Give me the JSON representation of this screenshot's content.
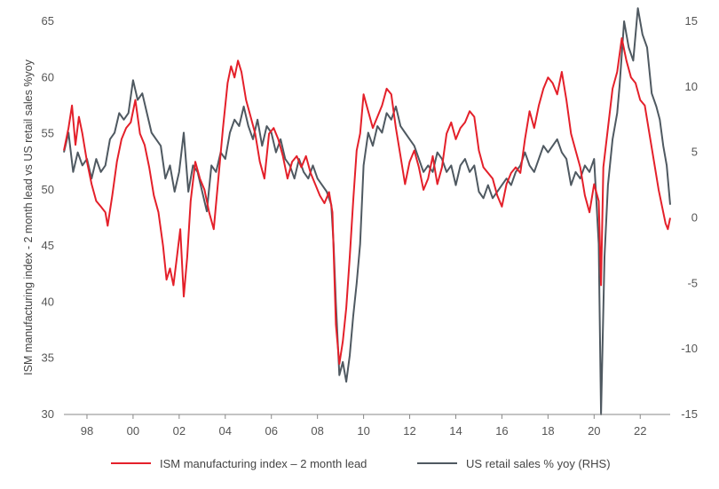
{
  "chart_data": {
    "type": "line",
    "title": "",
    "ylabel": "ISM manufacturing index - 2 month lead vs US retail sales %yoy",
    "xlabel": "",
    "x_range": [
      1997.0,
      2023.3
    ],
    "ylim_left": [
      30,
      65
    ],
    "ylim_right": [
      -15,
      15
    ],
    "y_ticks_left": [
      30,
      35,
      40,
      45,
      50,
      55,
      60,
      65
    ],
    "y_ticks_right": [
      -15,
      -10,
      -5,
      0,
      5,
      10,
      15
    ],
    "x_ticks": [
      {
        "x": 1998,
        "label": "98"
      },
      {
        "x": 2000,
        "label": "00"
      },
      {
        "x": 2002,
        "label": "02"
      },
      {
        "x": 2004,
        "label": "04"
      },
      {
        "x": 2006,
        "label": "06"
      },
      {
        "x": 2008,
        "label": "08"
      },
      {
        "x": 2010,
        "label": "10"
      },
      {
        "x": 2012,
        "label": "12"
      },
      {
        "x": 2014,
        "label": "14"
      },
      {
        "x": 2016,
        "label": "16"
      },
      {
        "x": 2018,
        "label": "18"
      },
      {
        "x": 2020,
        "label": "20"
      },
      {
        "x": 2022,
        "label": "22"
      }
    ],
    "grid": false,
    "legend_position": "bottom",
    "series": [
      {
        "name": "ISM manufacturing index – 2 month lead",
        "axis": "left",
        "color": "#e4202a",
        "points": [
          [
            1997.0,
            53.5
          ],
          [
            1997.2,
            55.5
          ],
          [
            1997.35,
            57.5
          ],
          [
            1997.5,
            54.0
          ],
          [
            1997.65,
            56.5
          ],
          [
            1997.8,
            55.0
          ],
          [
            1998.0,
            52.5
          ],
          [
            1998.2,
            50.5
          ],
          [
            1998.4,
            49.0
          ],
          [
            1998.6,
            48.5
          ],
          [
            1998.8,
            48.0
          ],
          [
            1998.9,
            46.8
          ],
          [
            1999.1,
            49.5
          ],
          [
            1999.3,
            52.5
          ],
          [
            1999.5,
            54.5
          ],
          [
            1999.7,
            55.5
          ],
          [
            1999.9,
            56.0
          ],
          [
            2000.1,
            58.0
          ],
          [
            2000.3,
            55.0
          ],
          [
            2000.5,
            54.0
          ],
          [
            2000.7,
            52.0
          ],
          [
            2000.9,
            49.5
          ],
          [
            2001.1,
            48.0
          ],
          [
            2001.3,
            45.0
          ],
          [
            2001.45,
            42.0
          ],
          [
            2001.6,
            43.0
          ],
          [
            2001.75,
            41.5
          ],
          [
            2001.9,
            44.0
          ],
          [
            2002.05,
            46.5
          ],
          [
            2002.2,
            40.5
          ],
          [
            2002.35,
            44.0
          ],
          [
            2002.5,
            49.0
          ],
          [
            2002.7,
            52.5
          ],
          [
            2002.9,
            51.0
          ],
          [
            2003.1,
            50.0
          ],
          [
            2003.3,
            48.0
          ],
          [
            2003.5,
            46.5
          ],
          [
            2003.7,
            51.0
          ],
          [
            2003.9,
            55.5
          ],
          [
            2004.1,
            59.5
          ],
          [
            2004.25,
            61.0
          ],
          [
            2004.4,
            60.0
          ],
          [
            2004.55,
            61.5
          ],
          [
            2004.7,
            60.5
          ],
          [
            2004.9,
            58.0
          ],
          [
            2005.1,
            56.5
          ],
          [
            2005.3,
            55.0
          ],
          [
            2005.5,
            52.5
          ],
          [
            2005.7,
            51.0
          ],
          [
            2005.9,
            55.0
          ],
          [
            2006.1,
            55.5
          ],
          [
            2006.3,
            54.5
          ],
          [
            2006.5,
            53.0
          ],
          [
            2006.7,
            51.0
          ],
          [
            2006.9,
            52.5
          ],
          [
            2007.1,
            53.0
          ],
          [
            2007.3,
            52.0
          ],
          [
            2007.5,
            53.0
          ],
          [
            2007.7,
            51.5
          ],
          [
            2007.9,
            50.5
          ],
          [
            2008.1,
            49.5
          ],
          [
            2008.3,
            48.8
          ],
          [
            2008.5,
            49.8
          ],
          [
            2008.65,
            48.0
          ],
          [
            2008.8,
            38.0
          ],
          [
            2008.95,
            34.5
          ],
          [
            2009.1,
            36.5
          ],
          [
            2009.25,
            39.5
          ],
          [
            2009.4,
            44.0
          ],
          [
            2009.55,
            49.0
          ],
          [
            2009.7,
            53.5
          ],
          [
            2009.85,
            55.0
          ],
          [
            2010.0,
            58.5
          ],
          [
            2010.2,
            57.0
          ],
          [
            2010.4,
            55.5
          ],
          [
            2010.6,
            56.5
          ],
          [
            2010.8,
            57.5
          ],
          [
            2011.0,
            59.0
          ],
          [
            2011.2,
            58.5
          ],
          [
            2011.4,
            55.5
          ],
          [
            2011.6,
            53.0
          ],
          [
            2011.8,
            50.5
          ],
          [
            2012.0,
            52.5
          ],
          [
            2012.2,
            53.5
          ],
          [
            2012.4,
            52.0
          ],
          [
            2012.6,
            50.0
          ],
          [
            2012.8,
            51.0
          ],
          [
            2013.0,
            53.0
          ],
          [
            2013.2,
            50.5
          ],
          [
            2013.4,
            52.0
          ],
          [
            2013.6,
            55.0
          ],
          [
            2013.8,
            56.0
          ],
          [
            2014.0,
            54.5
          ],
          [
            2014.2,
            55.5
          ],
          [
            2014.4,
            56.0
          ],
          [
            2014.6,
            57.0
          ],
          [
            2014.8,
            56.5
          ],
          [
            2015.0,
            53.5
          ],
          [
            2015.2,
            52.0
          ],
          [
            2015.4,
            51.5
          ],
          [
            2015.6,
            51.0
          ],
          [
            2015.8,
            49.5
          ],
          [
            2016.0,
            48.5
          ],
          [
            2016.2,
            50.5
          ],
          [
            2016.4,
            51.5
          ],
          [
            2016.6,
            52.0
          ],
          [
            2016.8,
            51.5
          ],
          [
            2017.0,
            54.5
          ],
          [
            2017.2,
            57.0
          ],
          [
            2017.4,
            55.5
          ],
          [
            2017.6,
            57.5
          ],
          [
            2017.8,
            59.0
          ],
          [
            2018.0,
            60.0
          ],
          [
            2018.2,
            59.5
          ],
          [
            2018.4,
            58.5
          ],
          [
            2018.6,
            60.5
          ],
          [
            2018.8,
            58.0
          ],
          [
            2019.0,
            55.0
          ],
          [
            2019.2,
            53.5
          ],
          [
            2019.4,
            52.0
          ],
          [
            2019.6,
            49.5
          ],
          [
            2019.8,
            48.0
          ],
          [
            2020.0,
            50.5
          ],
          [
            2020.2,
            49.0
          ],
          [
            2020.3,
            41.5
          ],
          [
            2020.4,
            52.0
          ],
          [
            2020.6,
            55.5
          ],
          [
            2020.8,
            59.0
          ],
          [
            2021.0,
            60.5
          ],
          [
            2021.2,
            63.5
          ],
          [
            2021.4,
            61.5
          ],
          [
            2021.6,
            60.0
          ],
          [
            2021.8,
            59.5
          ],
          [
            2022.0,
            58.0
          ],
          [
            2022.2,
            57.5
          ],
          [
            2022.4,
            55.0
          ],
          [
            2022.6,
            52.5
          ],
          [
            2022.8,
            50.0
          ],
          [
            2023.0,
            48.0
          ],
          [
            2023.1,
            47.0
          ],
          [
            2023.2,
            46.5
          ],
          [
            2023.3,
            47.5
          ]
        ]
      },
      {
        "name": "US retail sales % yoy (RHS)",
        "axis": "right",
        "color": "#4f5961",
        "points": [
          [
            1997.0,
            5.0
          ],
          [
            1997.2,
            6.5
          ],
          [
            1997.4,
            3.5
          ],
          [
            1997.6,
            5.0
          ],
          [
            1997.8,
            4.0
          ],
          [
            1998.0,
            4.5
          ],
          [
            1998.2,
            3.0
          ],
          [
            1998.4,
            4.5
          ],
          [
            1998.6,
            3.5
          ],
          [
            1998.8,
            4.0
          ],
          [
            1999.0,
            6.0
          ],
          [
            1999.2,
            6.5
          ],
          [
            1999.4,
            8.0
          ],
          [
            1999.6,
            7.5
          ],
          [
            1999.8,
            8.0
          ],
          [
            2000.0,
            10.5
          ],
          [
            2000.2,
            9.0
          ],
          [
            2000.4,
            9.5
          ],
          [
            2000.6,
            8.0
          ],
          [
            2000.8,
            6.5
          ],
          [
            2001.0,
            6.0
          ],
          [
            2001.2,
            5.5
          ],
          [
            2001.4,
            3.0
          ],
          [
            2001.6,
            4.0
          ],
          [
            2001.8,
            2.0
          ],
          [
            2002.0,
            3.5
          ],
          [
            2002.2,
            6.5
          ],
          [
            2002.4,
            2.0
          ],
          [
            2002.6,
            4.0
          ],
          [
            2002.8,
            3.5
          ],
          [
            2003.0,
            2.0
          ],
          [
            2003.2,
            0.5
          ],
          [
            2003.4,
            4.0
          ],
          [
            2003.6,
            3.5
          ],
          [
            2003.8,
            5.0
          ],
          [
            2004.0,
            4.5
          ],
          [
            2004.2,
            6.5
          ],
          [
            2004.4,
            7.5
          ],
          [
            2004.6,
            7.0
          ],
          [
            2004.8,
            8.5
          ],
          [
            2005.0,
            7.0
          ],
          [
            2005.2,
            6.0
          ],
          [
            2005.4,
            7.5
          ],
          [
            2005.6,
            5.5
          ],
          [
            2005.8,
            7.0
          ],
          [
            2006.0,
            6.5
          ],
          [
            2006.2,
            5.0
          ],
          [
            2006.4,
            6.0
          ],
          [
            2006.6,
            4.5
          ],
          [
            2006.8,
            4.0
          ],
          [
            2007.0,
            3.0
          ],
          [
            2007.2,
            4.5
          ],
          [
            2007.4,
            3.5
          ],
          [
            2007.6,
            3.0
          ],
          [
            2007.8,
            4.0
          ],
          [
            2008.0,
            3.0
          ],
          [
            2008.2,
            2.5
          ],
          [
            2008.4,
            2.0
          ],
          [
            2008.6,
            1.0
          ],
          [
            2008.7,
            -2.0
          ],
          [
            2008.8,
            -6.5
          ],
          [
            2008.95,
            -12.0
          ],
          [
            2009.1,
            -11.0
          ],
          [
            2009.25,
            -12.5
          ],
          [
            2009.4,
            -10.5
          ],
          [
            2009.55,
            -7.5
          ],
          [
            2009.7,
            -5.0
          ],
          [
            2009.85,
            -2.0
          ],
          [
            2010.0,
            4.0
          ],
          [
            2010.2,
            6.5
          ],
          [
            2010.4,
            5.5
          ],
          [
            2010.6,
            7.0
          ],
          [
            2010.8,
            6.5
          ],
          [
            2011.0,
            8.0
          ],
          [
            2011.2,
            7.5
          ],
          [
            2011.4,
            8.5
          ],
          [
            2011.6,
            7.0
          ],
          [
            2011.8,
            6.5
          ],
          [
            2012.0,
            6.0
          ],
          [
            2012.2,
            5.5
          ],
          [
            2012.4,
            4.5
          ],
          [
            2012.6,
            3.5
          ],
          [
            2012.8,
            4.0
          ],
          [
            2013.0,
            3.5
          ],
          [
            2013.2,
            5.0
          ],
          [
            2013.4,
            4.5
          ],
          [
            2013.6,
            3.5
          ],
          [
            2013.8,
            4.0
          ],
          [
            2014.0,
            2.5
          ],
          [
            2014.2,
            4.0
          ],
          [
            2014.4,
            4.5
          ],
          [
            2014.6,
            3.5
          ],
          [
            2014.8,
            4.0
          ],
          [
            2015.0,
            2.0
          ],
          [
            2015.2,
            1.5
          ],
          [
            2015.4,
            2.5
          ],
          [
            2015.6,
            1.5
          ],
          [
            2015.8,
            2.0
          ],
          [
            2016.0,
            2.5
          ],
          [
            2016.2,
            3.0
          ],
          [
            2016.4,
            2.5
          ],
          [
            2016.6,
            3.5
          ],
          [
            2016.8,
            4.0
          ],
          [
            2017.0,
            5.0
          ],
          [
            2017.2,
            4.0
          ],
          [
            2017.4,
            3.5
          ],
          [
            2017.6,
            4.5
          ],
          [
            2017.8,
            5.5
          ],
          [
            2018.0,
            5.0
          ],
          [
            2018.2,
            5.5
          ],
          [
            2018.4,
            6.0
          ],
          [
            2018.6,
            5.0
          ],
          [
            2018.8,
            4.5
          ],
          [
            2019.0,
            2.5
          ],
          [
            2019.2,
            3.5
          ],
          [
            2019.4,
            3.0
          ],
          [
            2019.6,
            4.0
          ],
          [
            2019.8,
            3.5
          ],
          [
            2020.0,
            4.5
          ],
          [
            2020.2,
            -2.0
          ],
          [
            2020.3,
            -15.0
          ],
          [
            2020.45,
            -3.0
          ],
          [
            2020.6,
            2.5
          ],
          [
            2020.8,
            6.0
          ],
          [
            2021.0,
            8.0
          ],
          [
            2021.1,
            10.0
          ],
          [
            2021.3,
            15.0
          ],
          [
            2021.5,
            13.0
          ],
          [
            2021.7,
            12.0
          ],
          [
            2021.9,
            16.0
          ],
          [
            2022.1,
            14.0
          ],
          [
            2022.3,
            13.0
          ],
          [
            2022.5,
            9.5
          ],
          [
            2022.7,
            8.5
          ],
          [
            2022.85,
            7.5
          ],
          [
            2023.0,
            5.5
          ],
          [
            2023.15,
            4.0
          ],
          [
            2023.25,
            2.0
          ],
          [
            2023.3,
            1.0
          ]
        ]
      }
    ]
  }
}
